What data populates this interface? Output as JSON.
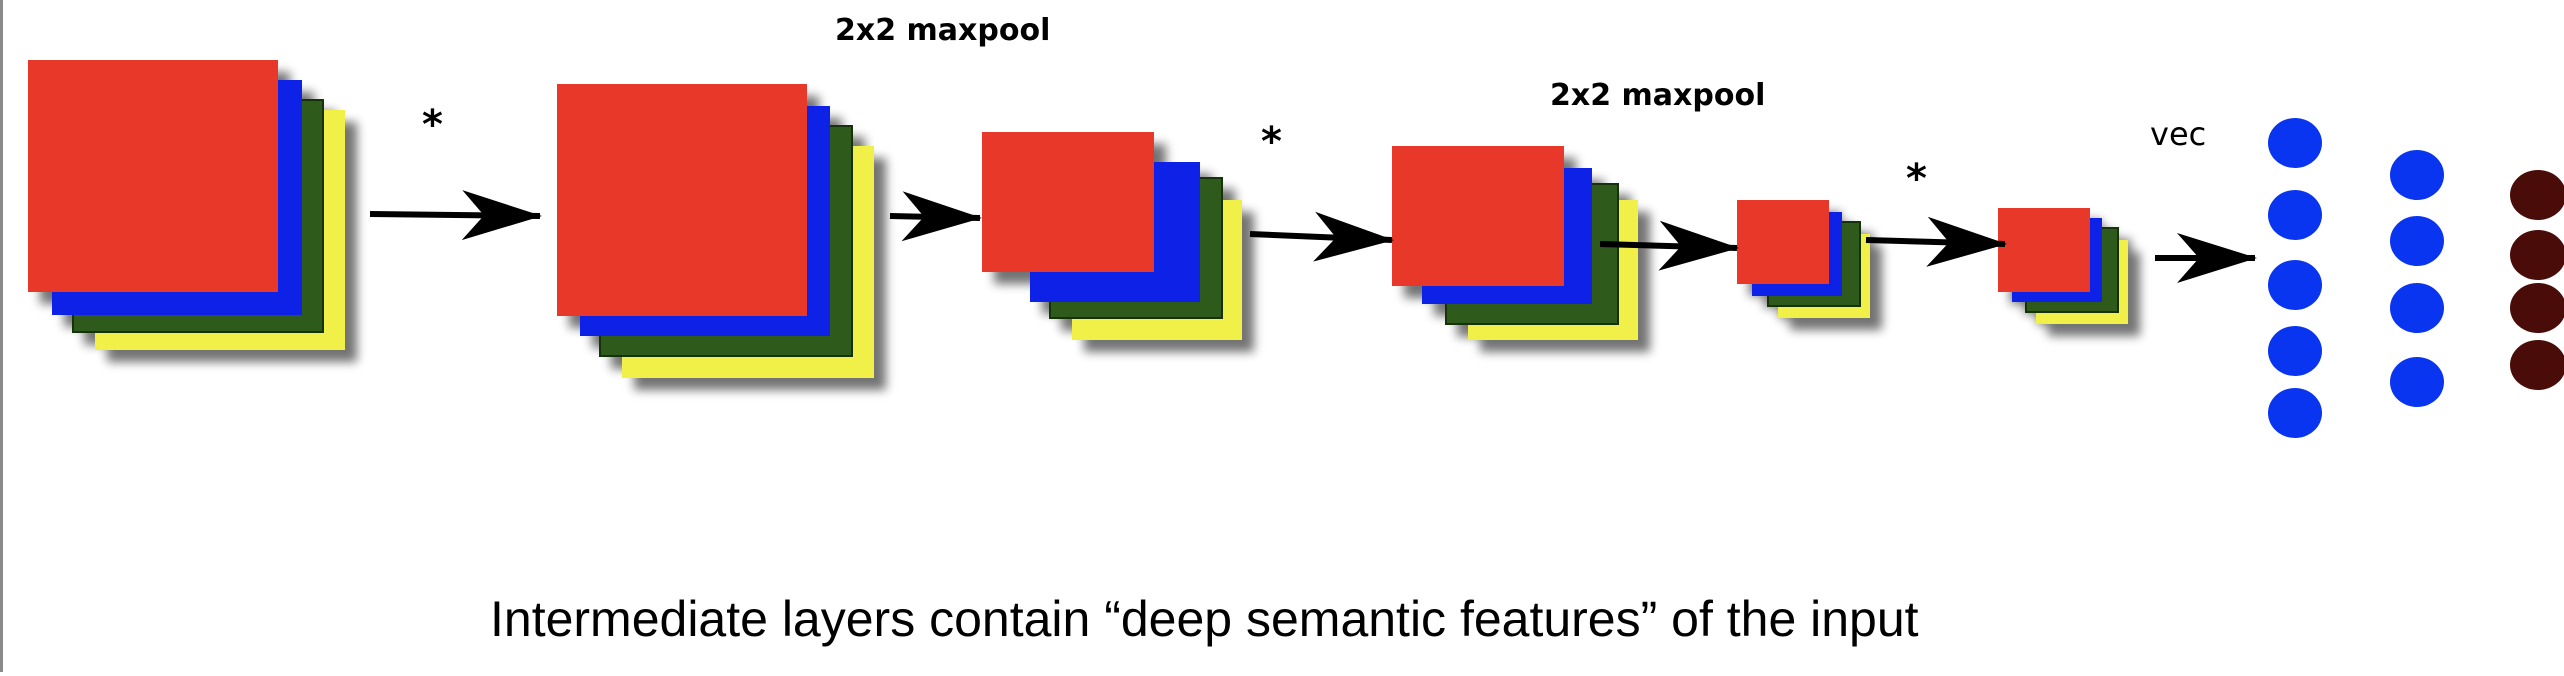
{
  "diagram": {
    "labels": {
      "maxpool_1": "2x2 maxpool",
      "maxpool_2": "2x2 maxpool",
      "vec": "vec",
      "conv_star": "*"
    },
    "caption": "Intermediate layers contain “deep semantic features” of the input",
    "colors": {
      "red": "#e8372a",
      "blue": "#0a24e6",
      "green": "#2e5a1a",
      "yellow": "#f0f04a",
      "node_blue": "#0a35f0",
      "node_brown": "#4a0c08",
      "shadow": "#9a9a9a"
    },
    "dense_layers": [
      {
        "name": "dense-layer-1",
        "nodes": 5,
        "color": "blue"
      },
      {
        "name": "dense-layer-2",
        "nodes": 4,
        "color": "blue"
      },
      {
        "name": "output-layer",
        "nodes": 4,
        "color": "brown"
      }
    ]
  }
}
